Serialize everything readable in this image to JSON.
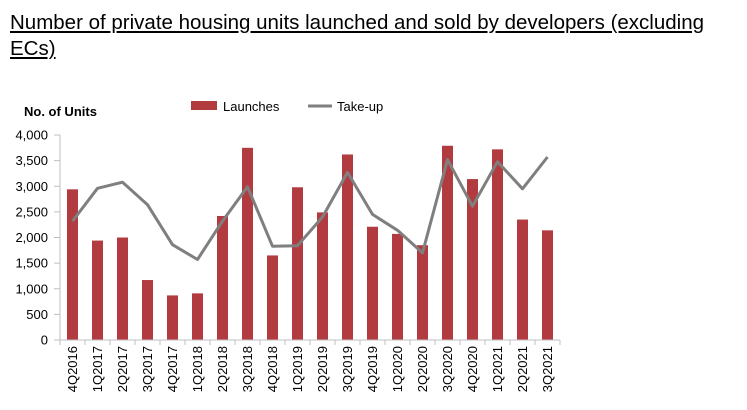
{
  "header": {
    "title": "Number of private housing units launched and sold by developers (excluding ECs)"
  },
  "chart_data": {
    "type": "bar",
    "title": "Number of private housing units launched and sold by developers (excluding ECs)",
    "ylabel": "No. of Units",
    "xlabel": "",
    "ylim": [
      0,
      4000
    ],
    "yticks": [
      "4,000",
      "3,500",
      "3,000",
      "2,500",
      "2,000",
      "1,500",
      "1,000",
      "500",
      "0"
    ],
    "ytick_values": [
      4000,
      3500,
      3000,
      2500,
      2000,
      1500,
      1000,
      500,
      0
    ],
    "legend_position": "top",
    "categories": [
      "4Q2016",
      "1Q2017",
      "2Q2017",
      "3Q2017",
      "4Q2017",
      "1Q2018",
      "2Q2018",
      "3Q2018",
      "4Q2018",
      "1Q2019",
      "2Q2019",
      "3Q2019",
      "4Q2019",
      "1Q2020",
      "2Q2020",
      "3Q2020",
      "4Q2020",
      "1Q2021",
      "2Q2021",
      "3Q2021"
    ],
    "series": [
      {
        "name": "Launches",
        "kind": "bar",
        "color": "#b23b3f",
        "values": [
          2940,
          1940,
          2000,
          1170,
          870,
          910,
          2420,
          3750,
          1650,
          2980,
          2490,
          3620,
          2210,
          2070,
          1850,
          3790,
          3140,
          3720,
          2350,
          2140
        ]
      },
      {
        "name": "Take-up",
        "kind": "line",
        "color": "#7f7f7f",
        "values": [
          2320,
          2960,
          3080,
          2640,
          1860,
          1570,
          2320,
          2990,
          1830,
          1840,
          2400,
          3270,
          2450,
          2140,
          1700,
          3520,
          2610,
          3480,
          2950,
          3570
        ]
      }
    ]
  }
}
